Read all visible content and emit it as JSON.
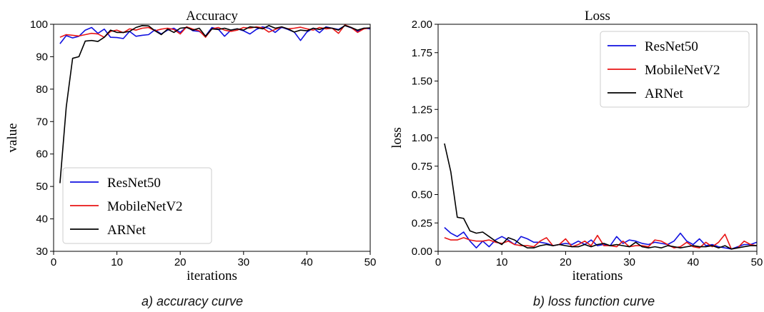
{
  "figure": {
    "captions": [
      "a) accuracy curve",
      "b) loss function curve"
    ]
  },
  "chart_data": [
    {
      "type": "line",
      "title": "Accuracy",
      "xlabel": "iterations",
      "ylabel": "value",
      "xlim": [
        0,
        50
      ],
      "ylim": [
        30,
        100
      ],
      "xticks": [
        0,
        10,
        20,
        30,
        40,
        50
      ],
      "yticks": [
        30,
        40,
        50,
        60,
        70,
        80,
        90,
        100
      ],
      "grid": false,
      "legend": "bottom-left",
      "x": [
        1,
        2,
        3,
        4,
        5,
        6,
        7,
        8,
        9,
        10,
        11,
        12,
        13,
        14,
        15,
        16,
        17,
        18,
        19,
        20,
        21,
        22,
        23,
        24,
        25,
        26,
        27,
        28,
        29,
        30,
        31,
        32,
        33,
        34,
        35,
        36,
        37,
        38,
        39,
        40,
        41,
        42,
        43,
        44,
        45,
        46,
        47,
        48,
        49,
        50
      ],
      "series": [
        {
          "name": "ResNet50",
          "color": "#1010e0",
          "values": [
            94.0,
            96.5,
            95.8,
            96.3,
            98.2,
            99.0,
            97.2,
            98.5,
            96.0,
            95.9,
            95.6,
            97.8,
            96.3,
            96.6,
            96.8,
            98.3,
            97.0,
            98.2,
            98.8,
            97.5,
            99.2,
            98.0,
            97.8,
            96.4,
            99.0,
            98.5,
            96.3,
            98.2,
            98.6,
            98.0,
            97.0,
            98.4,
            99.2,
            98.8,
            97.5,
            99.1,
            98.4,
            97.6,
            95.0,
            97.6,
            98.8,
            97.4,
            99.2,
            98.8,
            98.4,
            99.6,
            98.9,
            97.8,
            98.8,
            98.6
          ]
        },
        {
          "name": "MobileNetV2",
          "color": "#e81515",
          "values": [
            96.0,
            96.8,
            96.6,
            96.4,
            96.8,
            97.2,
            97.0,
            96.0,
            97.8,
            98.2,
            97.4,
            98.6,
            98.2,
            98.8,
            99.0,
            98.0,
            98.5,
            98.8,
            98.4,
            97.0,
            99.2,
            98.5,
            98.0,
            96.0,
            98.6,
            99.0,
            98.2,
            97.8,
            98.2,
            99.0,
            98.8,
            99.2,
            98.9,
            97.6,
            98.4,
            99.2,
            98.6,
            98.8,
            99.1,
            98.6,
            98.2,
            99.0,
            98.6,
            98.8,
            97.2,
            99.8,
            99.0,
            97.5,
            98.6,
            98.9
          ]
        },
        {
          "name": "ARNet",
          "color": "#000000",
          "values": [
            51.0,
            74.5,
            89.5,
            90.0,
            94.8,
            95.0,
            94.7,
            96.0,
            98.2,
            97.5,
            97.5,
            97.8,
            99.0,
            99.6,
            99.5,
            98.0,
            96.8,
            98.5,
            97.5,
            98.8,
            99.0,
            98.2,
            98.8,
            96.3,
            98.6,
            98.4,
            98.8,
            98.2,
            98.6,
            98.2,
            99.2,
            99.0,
            98.6,
            99.6,
            98.8,
            99.2,
            98.6,
            97.6,
            98.2,
            98.0,
            98.8,
            98.4,
            99.0,
            98.8,
            98.2,
            99.6,
            99.0,
            98.2,
            98.8,
            98.9
          ]
        }
      ]
    },
    {
      "type": "line",
      "title": "Loss",
      "xlabel": "iterations",
      "ylabel": "loss",
      "xlim": [
        0,
        50
      ],
      "ylim": [
        0,
        2.0
      ],
      "xticks": [
        0,
        10,
        20,
        30,
        40,
        50
      ],
      "yticks": [
        0.0,
        0.25,
        0.5,
        0.75,
        1.0,
        1.25,
        1.5,
        1.75,
        2.0
      ],
      "grid": false,
      "legend": "top-right",
      "x": [
        1,
        2,
        3,
        4,
        5,
        6,
        7,
        8,
        9,
        10,
        11,
        12,
        13,
        14,
        15,
        16,
        17,
        18,
        19,
        20,
        21,
        22,
        23,
        24,
        25,
        26,
        27,
        28,
        29,
        30,
        31,
        32,
        33,
        34,
        35,
        36,
        37,
        38,
        39,
        40,
        41,
        42,
        43,
        44,
        45,
        46,
        47,
        48,
        49,
        50
      ],
      "series": [
        {
          "name": "ResNet50",
          "color": "#1010e0",
          "values": [
            0.21,
            0.16,
            0.13,
            0.17,
            0.09,
            0.03,
            0.09,
            0.04,
            0.1,
            0.13,
            0.1,
            0.06,
            0.13,
            0.11,
            0.08,
            0.08,
            0.07,
            0.05,
            0.06,
            0.07,
            0.06,
            0.09,
            0.06,
            0.1,
            0.05,
            0.06,
            0.05,
            0.13,
            0.07,
            0.1,
            0.09,
            0.07,
            0.06,
            0.08,
            0.07,
            0.06,
            0.09,
            0.16,
            0.09,
            0.06,
            0.11,
            0.05,
            0.06,
            0.04,
            0.03,
            0.02,
            0.04,
            0.06,
            0.06,
            0.08
          ]
        },
        {
          "name": "MobileNetV2",
          "color": "#e81515",
          "values": [
            0.12,
            0.1,
            0.1,
            0.12,
            0.1,
            0.09,
            0.09,
            0.1,
            0.08,
            0.07,
            0.09,
            0.06,
            0.05,
            0.05,
            0.04,
            0.09,
            0.12,
            0.05,
            0.06,
            0.11,
            0.04,
            0.06,
            0.09,
            0.05,
            0.14,
            0.05,
            0.05,
            0.04,
            0.09,
            0.04,
            0.05,
            0.05,
            0.04,
            0.1,
            0.09,
            0.06,
            0.03,
            0.04,
            0.08,
            0.04,
            0.03,
            0.08,
            0.04,
            0.08,
            0.15,
            0.02,
            0.03,
            0.09,
            0.06,
            0.05
          ]
        },
        {
          "name": "ARNet",
          "color": "#000000",
          "values": [
            0.95,
            0.7,
            0.3,
            0.29,
            0.18,
            0.16,
            0.17,
            0.13,
            0.09,
            0.06,
            0.12,
            0.1,
            0.06,
            0.03,
            0.03,
            0.05,
            0.06,
            0.05,
            0.06,
            0.05,
            0.04,
            0.04,
            0.06,
            0.04,
            0.06,
            0.07,
            0.05,
            0.06,
            0.05,
            0.04,
            0.08,
            0.04,
            0.03,
            0.04,
            0.03,
            0.05,
            0.04,
            0.03,
            0.04,
            0.05,
            0.04,
            0.04,
            0.05,
            0.03,
            0.05,
            0.02,
            0.03,
            0.04,
            0.05,
            0.05
          ]
        }
      ]
    }
  ]
}
